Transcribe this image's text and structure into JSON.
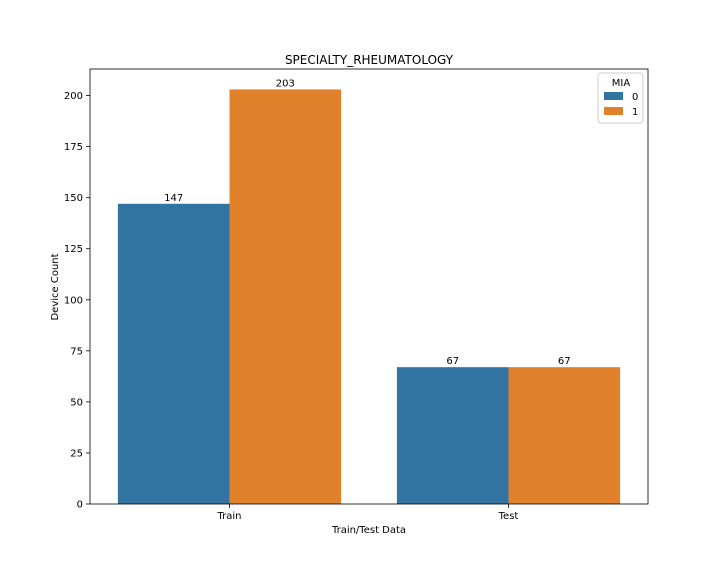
{
  "chart_data": {
    "type": "bar",
    "title": "SPECIALTY_RHEUMATOLOGY",
    "xlabel": "Train/Test Data",
    "ylabel": "Device Count",
    "categories": [
      "Train",
      "Test"
    ],
    "series": [
      {
        "name": "0",
        "values": [
          147,
          67
        ],
        "color": "#3274a1"
      },
      {
        "name": "1",
        "values": [
          203,
          67
        ],
        "color": "#e1812c"
      }
    ],
    "ylim": [
      0,
      213
    ],
    "yticks": [
      0,
      25,
      50,
      75,
      100,
      125,
      150,
      175,
      200
    ],
    "legend": {
      "title": "MIA",
      "position": "top-right"
    },
    "grid": false
  }
}
